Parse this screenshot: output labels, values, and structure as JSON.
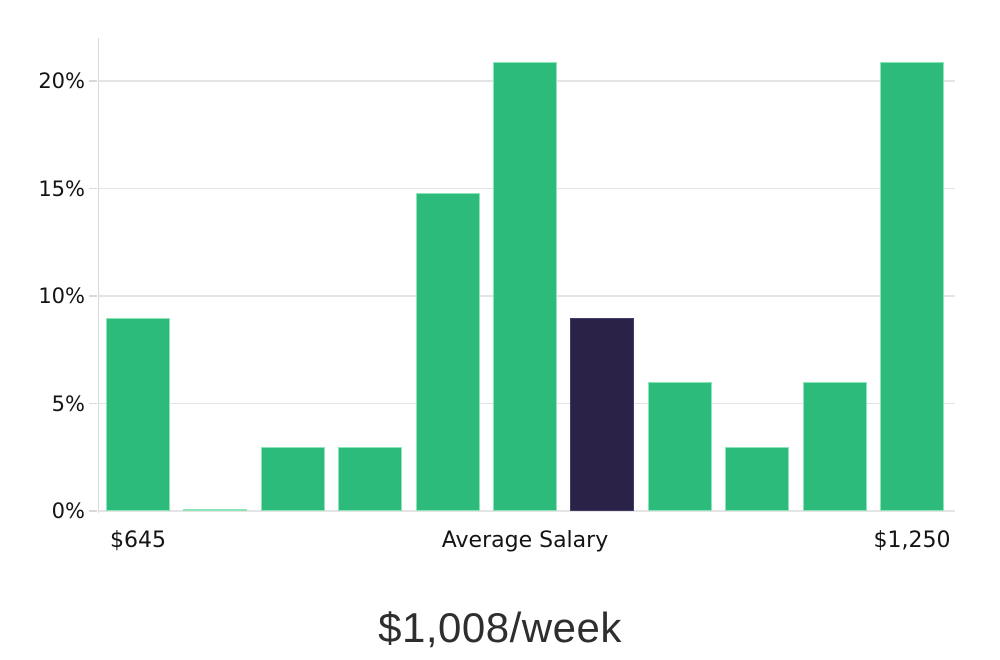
{
  "chart_data": {
    "type": "bar",
    "title": "$1,008/week",
    "values": [
      9,
      0.1,
      3,
      3,
      14.8,
      20.9,
      9,
      6,
      3,
      6,
      20.9
    ],
    "highlight_index": 6,
    "ylabel": "",
    "xlabel": "",
    "ylim": [
      0,
      22
    ],
    "grid": true,
    "legend_position": "none",
    "y_ticks": [
      {
        "value": 0,
        "label": "0%"
      },
      {
        "value": 5,
        "label": "5%"
      },
      {
        "value": 10,
        "label": "10%"
      },
      {
        "value": 15,
        "label": "15%"
      },
      {
        "value": 20,
        "label": "20%"
      }
    ],
    "x_tick_labels": [
      {
        "bar_index": 0,
        "label": "$645"
      },
      {
        "bar_index": 5,
        "label": "Average Salary"
      },
      {
        "bar_index": 10,
        "label": "$1,250"
      }
    ],
    "colors": {
      "bar_fill": "#2cbb7b",
      "bar_edge": "#8ce4b8",
      "highlight_fill": "#2a2347",
      "highlight_edge": "#443b68",
      "gridline": "#e4e4e4",
      "axis_line": "#d9d9d9",
      "tick_text": "#141414",
      "title_text": "#2e2e2e"
    }
  }
}
